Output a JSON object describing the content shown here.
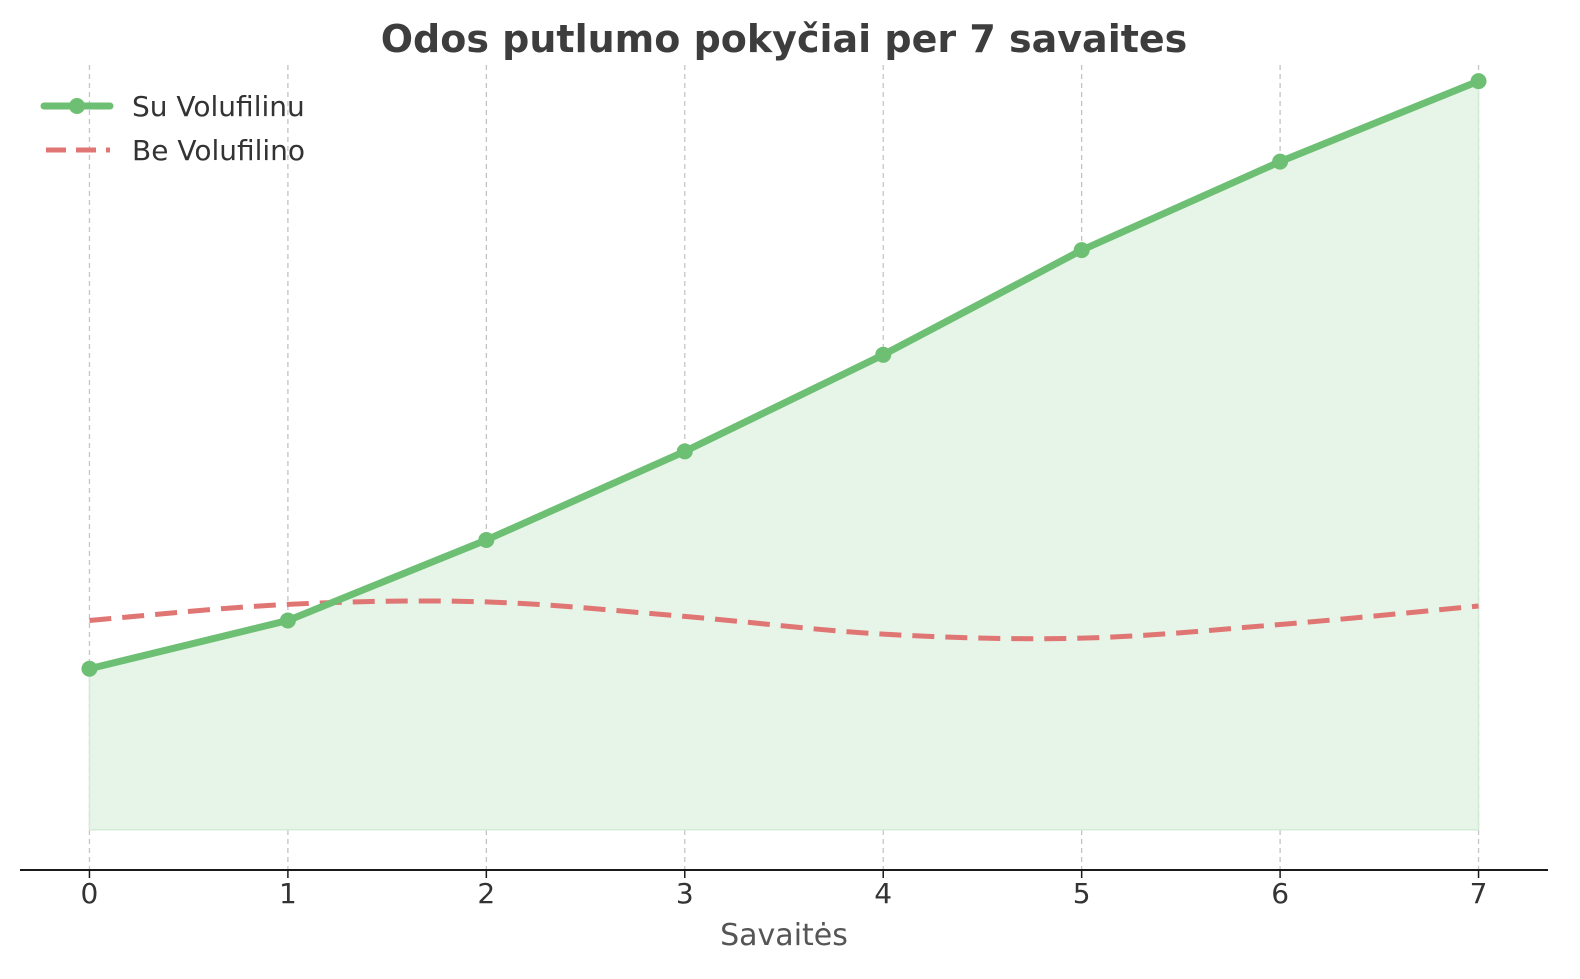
{
  "chart_data": {
    "type": "line",
    "title": "Odos putlumo pokyčiai per 7 savaites",
    "xlabel": "Savaitės",
    "ylabel": "",
    "x": [
      0,
      1,
      2,
      3,
      4,
      5,
      6,
      7
    ],
    "xlim": [
      -0.35,
      7.35
    ],
    "ylim": [
      0,
      10
    ],
    "y_ticks_visible": false,
    "grid": {
      "x": true,
      "y": false,
      "style": "dashed"
    },
    "legend": {
      "placement": "top-left"
    },
    "fill_baseline": 0.5,
    "series": [
      {
        "name": "Su Volufilinu",
        "values": [
          2.5,
          3.1,
          4.1,
          5.2,
          6.4,
          7.7,
          8.8,
          9.8
        ],
        "color": "#6dbf73",
        "style": "solid",
        "markers": true,
        "filled": true,
        "fill_color": "#e7f4e8"
      },
      {
        "name": "Be Volufilino",
        "values": [
          3.1,
          3.3,
          3.33,
          3.15,
          2.93,
          2.88,
          3.05,
          3.28
        ],
        "color": "#e07673",
        "style": "dashed",
        "markers": false,
        "filled": false
      }
    ]
  }
}
